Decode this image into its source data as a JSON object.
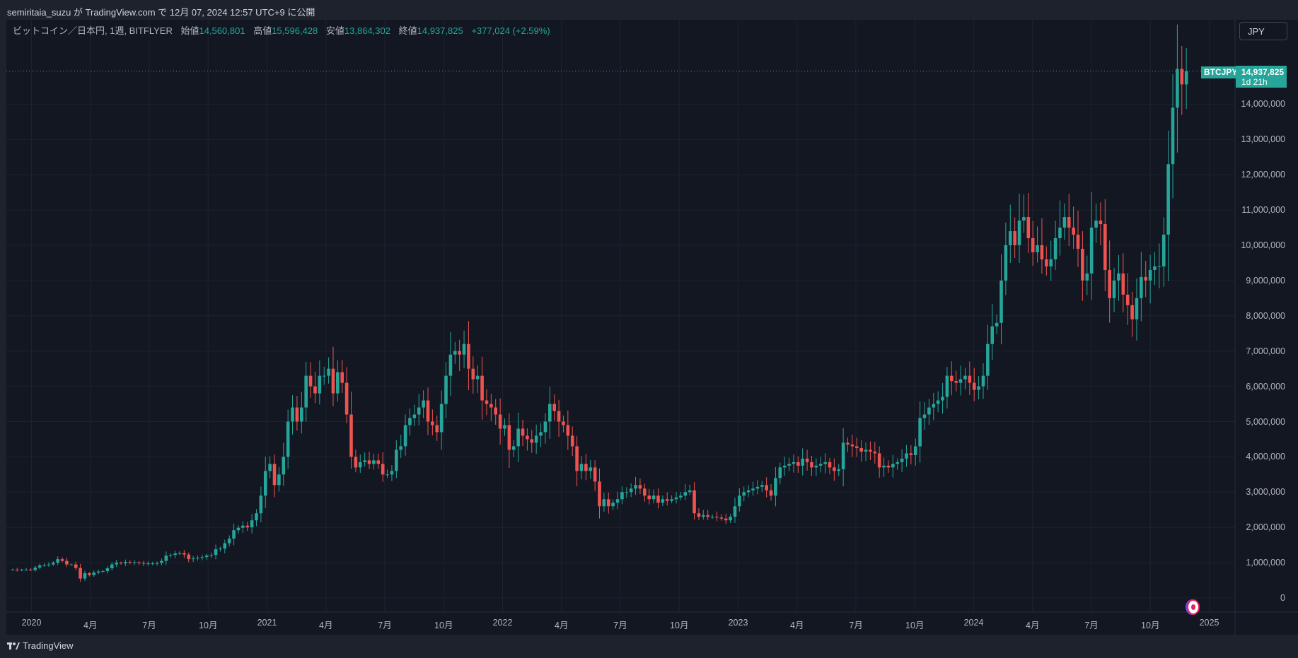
{
  "publish_line": "semiritaia_suzu が TradingView.com で 12月 07, 2024 12:57 UTC+9 に公開",
  "legend": {
    "symbol": "ビットコイン／日本円, 1週, BITFLYER",
    "open_label": "始値",
    "open": "14,560,801",
    "high_label": "高値",
    "high": "15,596,428",
    "low_label": "安値",
    "low": "13,864,302",
    "close_label": "終値",
    "close": "14,937,825",
    "change": "+377,024 (+2.59%)"
  },
  "currency_button": "JPY",
  "symbol_tag": "BTCJPY",
  "last_price": "14,937,825",
  "countdown": "1d 21h",
  "footer_logo": "TradingView",
  "colors": {
    "up": "#26a69a",
    "down": "#ef5350",
    "bg": "#131722",
    "grid": "#1e222d"
  },
  "chart_data": {
    "type": "candlestick",
    "title": "BTCJPY weekly (BITFLYER)",
    "interval": "1W",
    "start_year_fraction": 2019.92,
    "unit": "million JPY",
    "ylim": [
      -0.5,
      16.4
    ],
    "last_candle": {
      "open": 14.560801,
      "high": 15.596428,
      "low": 13.864302,
      "close": 14.937825
    },
    "first_open": 0.8,
    "closes": [
      0.8,
      0.78,
      0.8,
      0.8,
      0.79,
      0.86,
      0.92,
      0.93,
      0.95,
      1.0,
      1.1,
      1.05,
      0.95,
      0.95,
      0.85,
      0.55,
      0.7,
      0.65,
      0.72,
      0.75,
      0.76,
      0.84,
      0.95,
      1.0,
      0.98,
      1.02,
      1.0,
      1.01,
      0.99,
      0.97,
      0.98,
      0.98,
      0.99,
      1.05,
      1.2,
      1.22,
      1.26,
      1.27,
      1.23,
      1.1,
      1.12,
      1.14,
      1.16,
      1.2,
      1.22,
      1.38,
      1.4,
      1.55,
      1.68,
      1.92,
      1.99,
      2.05,
      2.0,
      2.2,
      2.4,
      2.9,
      3.6,
      3.8,
      3.2,
      3.5,
      4.0,
      5.0,
      5.4,
      5.0,
      5.4,
      6.3,
      6.0,
      5.8,
      6.3,
      6.3,
      6.5,
      5.8,
      6.4,
      6.1,
      5.2,
      4.0,
      3.7,
      3.85,
      3.9,
      3.8,
      3.9,
      3.8,
      3.5,
      3.5,
      3.6,
      4.2,
      4.3,
      4.9,
      5.1,
      5.2,
      5.4,
      5.6,
      5.0,
      4.9,
      4.7,
      5.5,
      6.3,
      6.9,
      7.0,
      6.9,
      7.2,
      6.5,
      6.2,
      6.3,
      5.6,
      5.5,
      5.4,
      5.2,
      4.8,
      4.9,
      4.2,
      4.3,
      4.8,
      4.6,
      4.5,
      4.4,
      4.6,
      4.7,
      5.0,
      5.5,
      5.3,
      5.0,
      4.9,
      4.6,
      4.3,
      3.6,
      3.8,
      3.6,
      3.7,
      3.3,
      2.6,
      2.8,
      2.6,
      2.7,
      2.8,
      3.0,
      3.0,
      3.1,
      3.2,
      3.1,
      2.9,
      2.8,
      2.9,
      2.7,
      2.8,
      2.75,
      2.8,
      2.85,
      2.9,
      3.0,
      3.05,
      2.4,
      2.3,
      2.35,
      2.3,
      2.3,
      2.28,
      2.25,
      2.2,
      2.3,
      2.6,
      2.9,
      3.0,
      3.05,
      3.1,
      3.15,
      3.2,
      3.05,
      2.9,
      3.4,
      3.7,
      3.75,
      3.8,
      3.85,
      3.75,
      3.95,
      3.85,
      3.7,
      3.75,
      3.8,
      3.85,
      3.7,
      3.6,
      3.65,
      4.4,
      4.35,
      4.3,
      4.25,
      4.15,
      4.2,
      4.15,
      4.1,
      3.7,
      3.75,
      3.7,
      3.8,
      3.85,
      3.95,
      4.1,
      4.05,
      4.3,
      5.1,
      5.2,
      5.4,
      5.5,
      5.6,
      5.7,
      6.3,
      6.15,
      6.1,
      6.2,
      6.3,
      6.1,
      5.9,
      6.0,
      6.3,
      7.2,
      7.7,
      7.8,
      9.0,
      10.0,
      10.4,
      10.0,
      10.7,
      10.8,
      10.2,
      9.8,
      10.0,
      9.6,
      9.4,
      9.6,
      10.2,
      10.5,
      10.8,
      10.5,
      10.3,
      9.9,
      9.0,
      9.2,
      10.5,
      10.7,
      10.6,
      9.3,
      8.5,
      9.0,
      9.2,
      8.6,
      8.3,
      7.9,
      8.5,
      9.1,
      9.0,
      9.3,
      9.4,
      9.4,
      10.3,
      12.3,
      13.9,
      15.0,
      14.56,
      14.94
    ],
    "price_ticks": [
      {
        "v": 0,
        "label": "0"
      },
      {
        "v": 1,
        "label": "1,000,000"
      },
      {
        "v": 2,
        "label": "2,000,000"
      },
      {
        "v": 3,
        "label": "3,000,000"
      },
      {
        "v": 4,
        "label": "4,000,000"
      },
      {
        "v": 5,
        "label": "5,000,000"
      },
      {
        "v": 6,
        "label": "6,000,000"
      },
      {
        "v": 7,
        "label": "7,000,000"
      },
      {
        "v": 8,
        "label": "8,000,000"
      },
      {
        "v": 9,
        "label": "9,000,000"
      },
      {
        "v": 10,
        "label": "10,000,000"
      },
      {
        "v": 11,
        "label": "11,000,000"
      },
      {
        "v": 12,
        "label": "12,000,000"
      },
      {
        "v": 13,
        "label": "13,000,000"
      },
      {
        "v": 14,
        "label": "14,000,000"
      }
    ],
    "time_ticks": [
      {
        "t": 2020,
        "label": "2020"
      },
      {
        "t": 2020.25,
        "label": "4月"
      },
      {
        "t": 2020.5,
        "label": "7月"
      },
      {
        "t": 2020.75,
        "label": "10月"
      },
      {
        "t": 2021,
        "label": "2021"
      },
      {
        "t": 2021.25,
        "label": "4月"
      },
      {
        "t": 2021.5,
        "label": "7月"
      },
      {
        "t": 2021.75,
        "label": "10月"
      },
      {
        "t": 2022,
        "label": "2022"
      },
      {
        "t": 2022.25,
        "label": "4月"
      },
      {
        "t": 2022.5,
        "label": "7月"
      },
      {
        "t": 2022.75,
        "label": "10月"
      },
      {
        "t": 2023,
        "label": "2023"
      },
      {
        "t": 2023.25,
        "label": "4月"
      },
      {
        "t": 2023.5,
        "label": "7月"
      },
      {
        "t": 2023.75,
        "label": "10月"
      },
      {
        "t": 2024,
        "label": "2024"
      },
      {
        "t": 2024.25,
        "label": "4月"
      },
      {
        "t": 2024.5,
        "label": "7月"
      },
      {
        "t": 2024.75,
        "label": "10月"
      },
      {
        "t": 2025,
        "label": "2025"
      }
    ]
  }
}
